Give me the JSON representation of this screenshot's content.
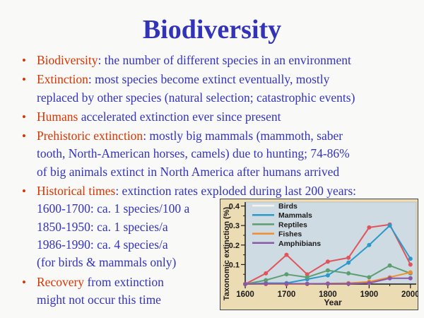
{
  "title": "Biodiversity",
  "colors": {
    "background": "#f9f9f7",
    "title": "#3333b8",
    "body": "#3333c0",
    "keyword": "#dd3300",
    "chart_frame_bg": "#ecdcb4",
    "chart_frame_border": "#444444",
    "plot_bg": "#cfdbe2",
    "axis": "#1a1a1a"
  },
  "bullets": [
    {
      "lines": [
        [
          {
            "t": "Biodiversity",
            "c": "k"
          },
          {
            "t": ": the number of different species in an environment",
            "c": "b"
          }
        ]
      ]
    },
    {
      "lines": [
        [
          {
            "t": "Extinction",
            "c": "k"
          },
          {
            "t": ": most species become extinct eventually, mostly",
            "c": "b"
          }
        ],
        [
          {
            "t": "replaced by other species (natural selection; catastrophic events)",
            "c": "b"
          }
        ]
      ]
    },
    {
      "lines": [
        [
          {
            "t": "Humans",
            "c": "k"
          },
          {
            "t": " accelerated extinction ever since present",
            "c": "b"
          }
        ]
      ]
    },
    {
      "lines": [
        [
          {
            "t": "Prehistoric extinction",
            "c": "k"
          },
          {
            "t": ": mostly big mammals (mammoth, saber",
            "c": "b"
          }
        ],
        [
          {
            "t": "tooth, North-American horses, camels) due to hunting; 74-86%",
            "c": "b"
          }
        ],
        [
          {
            "t": "of big animals extinct in North America after humans arrived",
            "c": "b"
          }
        ]
      ]
    },
    {
      "lines": [
        [
          {
            "t": "Historical times",
            "c": "k"
          },
          {
            "t": ": extinction rates exploded during last 200 years:",
            "c": "b"
          }
        ],
        [
          {
            "t": "1600-1700: ca. 1 species/100 a",
            "c": "b"
          }
        ],
        [
          {
            "t": "1850-1950: ca. 1 species/a",
            "c": "b"
          }
        ],
        [
          {
            "t": "1986-1990: ca. 4 species/a",
            "c": "b"
          }
        ],
        [
          {
            "t": "(for birds & mammals only)",
            "c": "b"
          }
        ]
      ]
    },
    {
      "lines": [
        [
          {
            "t": "Recovery",
            "c": "k"
          },
          {
            "t": " from extinction",
            "c": "b"
          }
        ],
        [
          {
            "t": "might not occur this time",
            "c": "b"
          }
        ]
      ]
    }
  ],
  "chart_data": {
    "type": "line",
    "title": "",
    "xlabel": "Year",
    "ylabel": "Taxonomic extinction (%)",
    "x": [
      1600,
      1650,
      1700,
      1750,
      1800,
      1850,
      1900,
      1950,
      2000
    ],
    "xticks": [
      1600,
      1700,
      1800,
      1900,
      2000
    ],
    "xticks_minor": [
      1650,
      1750,
      1850,
      1950
    ],
    "yticks": [
      0.1,
      0.2,
      0.3,
      0.4
    ],
    "yticks_minor": [
      0.05,
      0.15,
      0.25,
      0.35
    ],
    "xlim": [
      1600,
      2014
    ],
    "ylim": [
      0,
      0.42
    ],
    "grid": false,
    "legend_position": "top-left-inside",
    "series": [
      {
        "name": "Birds",
        "color": "#e0545c",
        "legend_color": "#f8f2ee",
        "values": [
          0,
          0.055,
          0.15,
          0.05,
          0.115,
          0.135,
          0.29,
          0.305,
          0.1
        ]
      },
      {
        "name": "Mammals",
        "color": "#2b9ac9",
        "legend_color": "#2b9ac9",
        "values": [
          0,
          0.005,
          0.005,
          0.025,
          0.045,
          0.11,
          0.2,
          0.3,
          0.13
        ]
      },
      {
        "name": "Reptiles",
        "color": "#5d9e70",
        "legend_color": "#5d9e70",
        "values": [
          0,
          0.02,
          0.05,
          0.035,
          0.07,
          0.055,
          0.035,
          0.095,
          0.055
        ]
      },
      {
        "name": "Fishes",
        "color": "#ef8e2e",
        "legend_color": "#ef8e2e",
        "values": [
          0,
          0,
          0,
          0,
          0.003,
          0.005,
          0.012,
          0.035,
          0.06
        ]
      },
      {
        "name": "Amphibians",
        "color": "#8a58a4",
        "legend_color": "#8a58a4",
        "values": [
          0,
          0.002,
          0.002,
          0.002,
          0.002,
          0.002,
          0.005,
          0.03,
          0.03
        ]
      }
    ]
  }
}
